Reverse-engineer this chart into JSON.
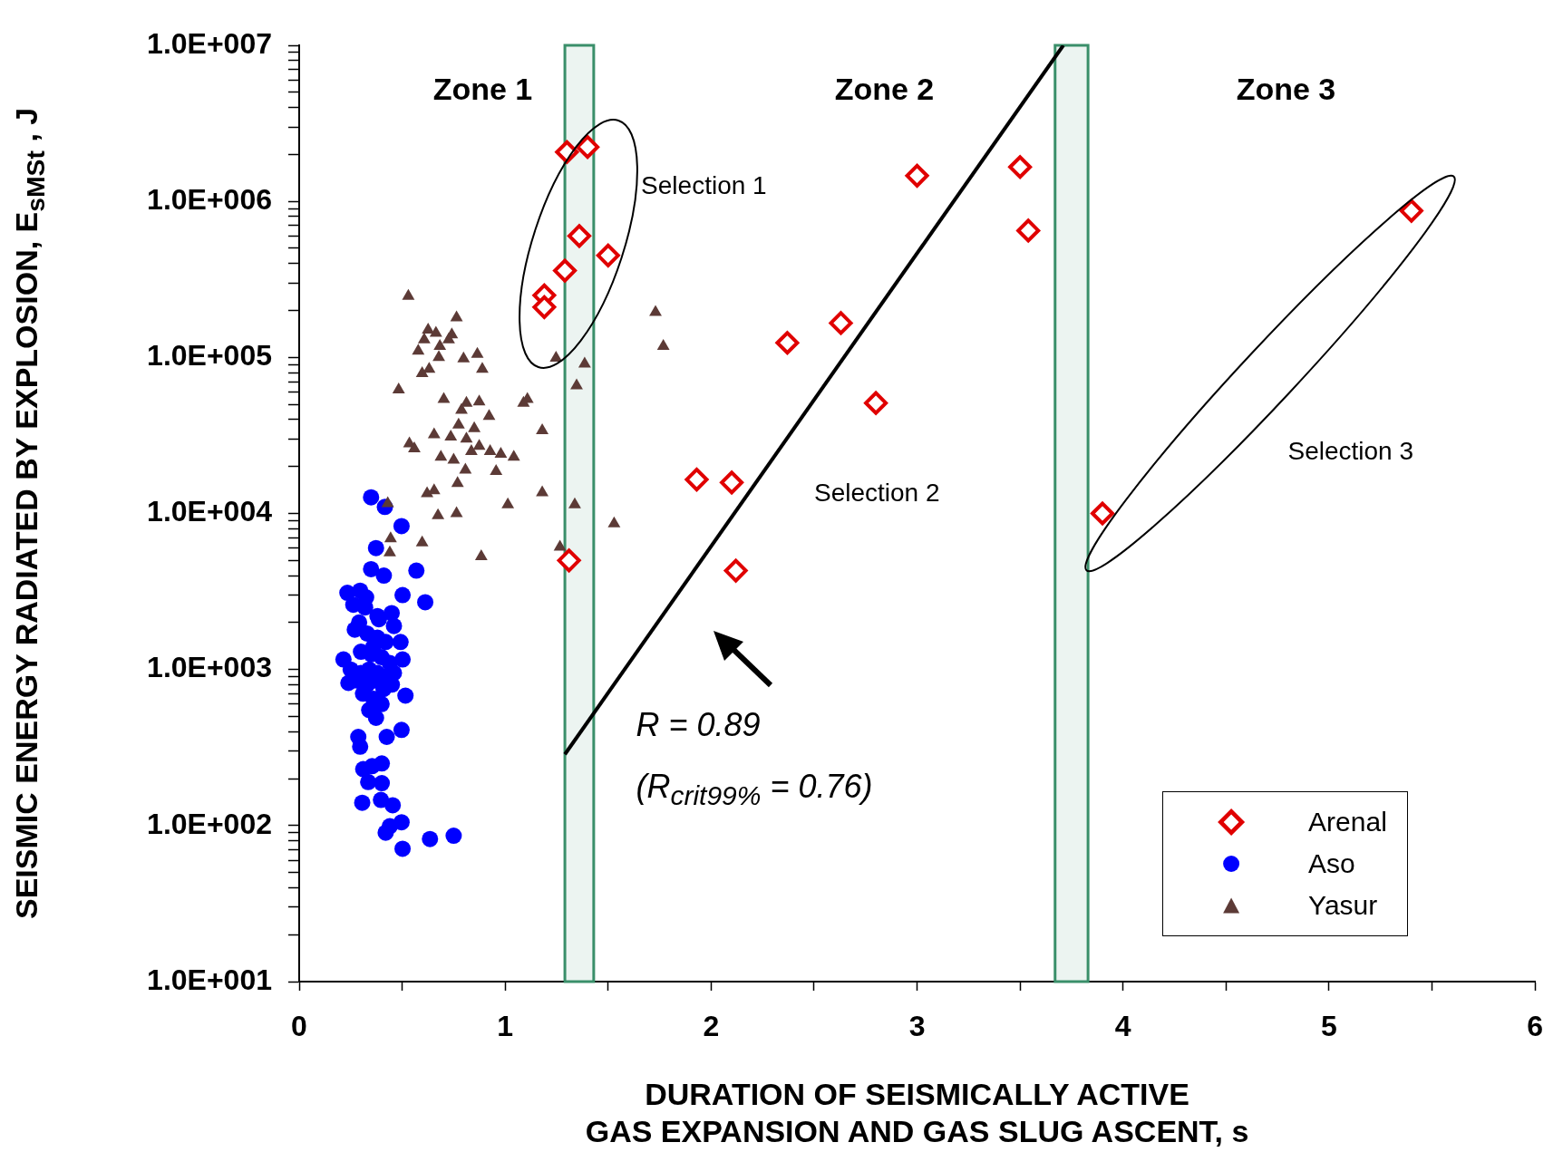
{
  "chart_data": {
    "type": "scatter",
    "xlabel": "DURATION OF SEISMICALLY ACTIVE\nGAS EXPANSION AND GAS SLUG ASCENT, s",
    "ylabel": "SEISMIC ENERGY RADIATED BY EXPLOSION, E$_{sMSt}$ , J",
    "log": "y",
    "grid": false,
    "legend": "bottom right",
    "xlim": [
      0,
      6
    ],
    "xticks": [
      0,
      {
        "value": 0.5,
        "label": null
      },
      1,
      {
        "value": 1.5,
        "label": null
      },
      2,
      {
        "value": 2.5,
        "label": null
      },
      3,
      {
        "value": 3.5,
        "label": null
      },
      4,
      {
        "value": 4.5,
        "label": null
      },
      5,
      {
        "value": 5.5,
        "label": null
      },
      6
    ],
    "ylim": [
      10,
      10000000
    ],
    "yticks": [
      {
        "value": 10,
        "label": "1.0E+001"
      },
      {
        "value": 20,
        "label": null
      },
      {
        "value": 30,
        "label": null
      },
      {
        "value": 40,
        "label": null
      },
      {
        "value": 50,
        "label": null
      },
      {
        "value": 60,
        "label": null
      },
      {
        "value": 70,
        "label": null
      },
      {
        "value": 80,
        "label": null
      },
      {
        "value": 90,
        "label": null
      },
      {
        "value": 100,
        "label": "1.0E+002"
      },
      {
        "value": 200,
        "label": null
      },
      {
        "value": 300,
        "label": null
      },
      {
        "value": 400,
        "label": null
      },
      {
        "value": 500,
        "label": null
      },
      {
        "value": 600,
        "label": null
      },
      {
        "value": 700,
        "label": null
      },
      {
        "value": 800,
        "label": null
      },
      {
        "value": 900,
        "label": null
      },
      {
        "value": 1000,
        "label": "1.0E+003"
      },
      {
        "value": 2000,
        "label": null
      },
      {
        "value": 3000,
        "label": null
      },
      {
        "value": 4000,
        "label": null
      },
      {
        "value": 5000,
        "label": null
      },
      {
        "value": 6000,
        "label": null
      },
      {
        "value": 7000,
        "label": null
      },
      {
        "value": 8000,
        "label": null
      },
      {
        "value": 9000,
        "label": null
      },
      {
        "value": 10000,
        "label": "1.0E+004"
      },
      {
        "value": 20000,
        "label": null
      },
      {
        "value": 30000,
        "label": null
      },
      {
        "value": 40000,
        "label": null
      },
      {
        "value": 50000,
        "label": null
      },
      {
        "value": 60000,
        "label": null
      },
      {
        "value": 70000,
        "label": null
      },
      {
        "value": 80000,
        "label": null
      },
      {
        "value": 90000,
        "label": null
      },
      {
        "value": 100000,
        "label": "1.0E+005"
      },
      {
        "value": 200000,
        "label": null
      },
      {
        "value": 300000,
        "label": null
      },
      {
        "value": 400000,
        "label": null
      },
      {
        "value": 500000,
        "label": null
      },
      {
        "value": 600000,
        "label": null
      },
      {
        "value": 700000,
        "label": null
      },
      {
        "value": 800000,
        "label": null
      },
      {
        "value": 900000,
        "label": null
      },
      {
        "value": 1000000,
        "label": "1.0E+006"
      },
      {
        "value": 2000000,
        "label": null
      },
      {
        "value": 3000000,
        "label": null
      },
      {
        "value": 4000000,
        "label": null
      },
      {
        "value": 5000000,
        "label": null
      },
      {
        "value": 6000000,
        "label": null
      },
      {
        "value": 7000000,
        "label": null
      },
      {
        "value": 8000000,
        "label": null
      },
      {
        "value": 9000000,
        "label": null
      },
      {
        "value": 10000000,
        "label": "1.0E+007"
      }
    ],
    "bands": [
      {
        "axis": "x",
        "from": 1.29,
        "to": 1.43,
        "color": "#3a8f6a"
      },
      {
        "axis": "x",
        "from": 3.67,
        "to": 3.83,
        "color": "#3a8f6a"
      }
    ],
    "annotations": [
      "Zone 1",
      "Zone 2",
      "Zone 3",
      "Selection 1",
      "Selection 2",
      "Selection 3",
      "R = 0.89",
      "(R$_{crit99%}$ = 0.76)"
    ],
    "series": [
      {
        "name": "Arenal",
        "marker": "diamond",
        "color": "#e00000",
        "x": [
          1.3,
          1.4,
          1.36,
          1.5,
          1.29,
          1.19,
          1.19,
          1.31,
          3.0,
          3.5,
          3.54,
          2.63,
          2.37,
          2.8,
          1.93,
          2.1,
          2.12,
          3.9,
          5.4
        ],
        "values": [
          2070000,
          2230000,
          600000,
          450000,
          360000,
          250000,
          210000,
          5000,
          1460000,
          1660000,
          650000,
          166000,
          124000,
          51000,
          16500,
          15800,
          4300,
          10000,
          870000
        ]
      },
      {
        "name": "Aso",
        "marker": "circle",
        "color": "#0000ff",
        "x": [
          0.349,
          0.416,
          0.497,
          0.373,
          0.411,
          0.349,
          0.569,
          0.502,
          0.612,
          0.234,
          0.296,
          0.325,
          0.263,
          0.387,
          0.449,
          0.291,
          0.492,
          0.502,
          0.215,
          0.239,
          0.516,
          0.373,
          0.497,
          0.287,
          0.296,
          0.425,
          0.311,
          0.401,
          0.354,
          0.335,
          0.401,
          0.306,
          0.397,
          0.454,
          0.497,
          0.42,
          0.44,
          0.502,
          0.635,
          0.75,
          0.27,
          0.33,
          0.38,
          0.42,
          0.3,
          0.35,
          0.4,
          0.44,
          0.25,
          0.3,
          0.34,
          0.38,
          0.42,
          0.46,
          0.28,
          0.33,
          0.37,
          0.41,
          0.45,
          0.31,
          0.36,
          0.4,
          0.34,
          0.38,
          0.32,
          0.46,
          0.36
        ],
        "values": [
          12700,
          11000,
          8300,
          6000,
          4000,
          4400,
          4300,
          3000,
          2700,
          3100,
          3200,
          2900,
          2600,
          2100,
          2300,
          2000,
          1500,
          1160,
          1160,
          820,
          680,
          490,
          410,
          370,
          320,
          370,
          230,
          250,
          240,
          190,
          187,
          140,
          146,
          135,
          105,
          90,
          99,
          71,
          82,
          86,
          1800,
          1700,
          1600,
          1500,
          1300,
          1250,
          1200,
          1100,
          1000,
          950,
          1000,
          950,
          900,
          950,
          850,
          800,
          850,
          750,
          800,
          700,
          650,
          600,
          550,
          2200,
          2500,
          1900,
          1400
        ]
      },
      {
        "name": "Yasur",
        "marker": "triangle",
        "color": "#5c3a36",
        "x": [
          0.53,
          0.626,
          0.664,
          0.607,
          0.764,
          0.683,
          0.726,
          0.741,
          0.678,
          0.578,
          0.631,
          0.597,
          0.798,
          0.865,
          0.889,
          0.483,
          0.702,
          0.812,
          0.874,
          0.922,
          0.788,
          1.089,
          1.108,
          0.774,
          0.655,
          0.535,
          0.559,
          0.736,
          0.812,
          0.85,
          0.874,
          0.927,
          0.836,
          0.688,
          0.75,
          0.979,
          1.042,
          1.18,
          0.621,
          0.655,
          0.769,
          0.956,
          0.807,
          0.674,
          0.764,
          1.013,
          1.18,
          0.597,
          0.444,
          0.44,
          0.43,
          0.884,
          1.338,
          1.347,
          1.386,
          1.247,
          1.529,
          1.266,
          1.73,
          1.768
        ],
        "values": [
          247000,
          150000,
          143000,
          130000,
          180000,
          118000,
          130000,
          140000,
          100000,
          110000,
          84000,
          79000,
          98000,
          105000,
          84000,
          62000,
          54000,
          51000,
          52000,
          42000,
          46000,
          51000,
          54000,
          37000,
          32000,
          28000,
          26000,
          31000,
          30000,
          35000,
          27000,
          25000,
          25000,
          23000,
          22000,
          24000,
          23000,
          34000,
          13400,
          14000,
          15600,
          18600,
          19000,
          9700,
          10000,
          11400,
          13600,
          6500,
          6900,
          5600,
          11600,
          5300,
          11400,
          66000,
          91000,
          99000,
          8600,
          6100,
          195000,
          118000
        ]
      },
      {
        "type": "line",
        "marker": "none",
        "line_style": "solid",
        "color": "#000000",
        "x": [
          1.29,
          3.71
        ],
        "values": [
          286,
          10000000
        ]
      }
    ]
  }
}
